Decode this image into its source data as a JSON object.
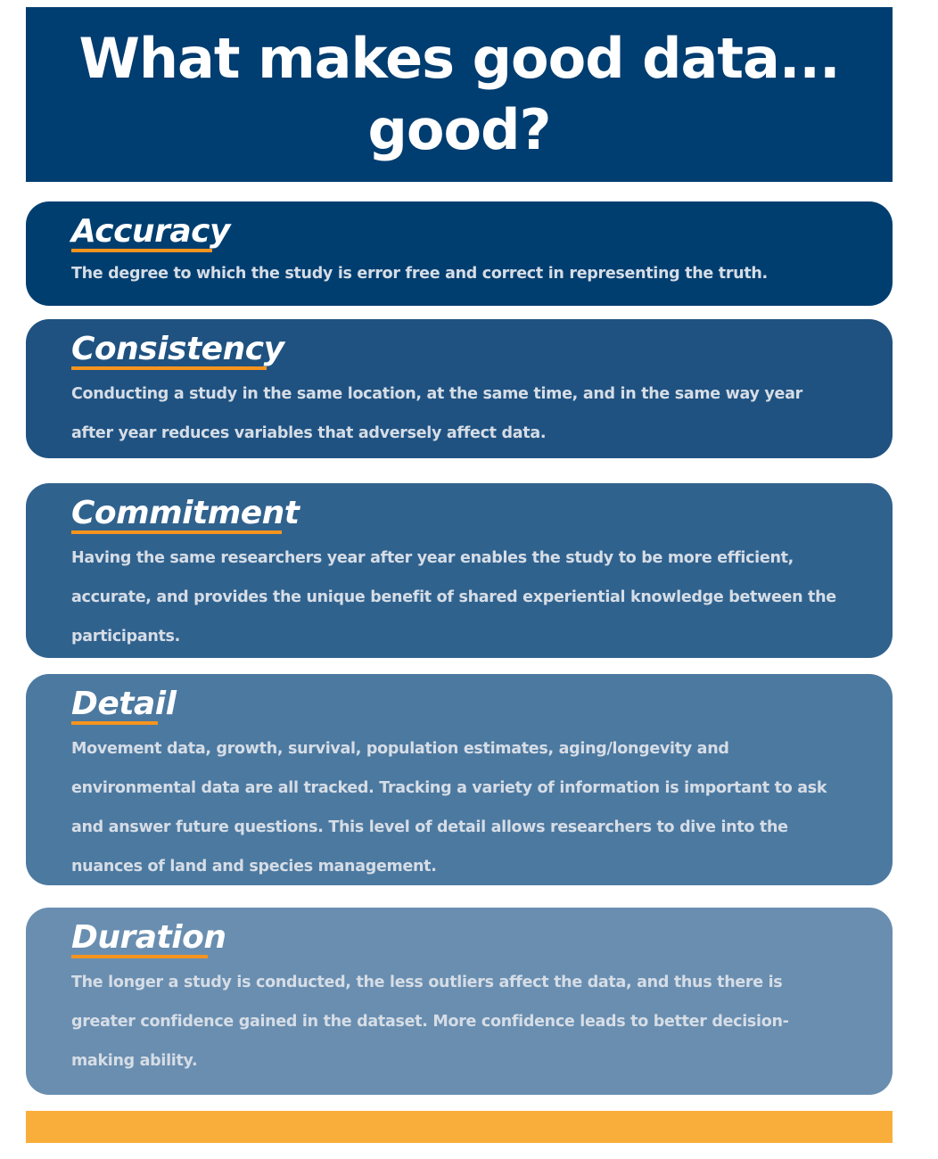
{
  "title": "What makes good data... good?",
  "colors": {
    "header": "#003d70",
    "accent": "#f7941d",
    "footer_bar": "#f9ae3b"
  },
  "sections": [
    {
      "heading": "Accuracy",
      "text": "The degree to which the study is error free and correct in representing the truth."
    },
    {
      "heading": "Consistency",
      "text": "Conducting a study in the same location, at the same time, and in the same way year after year reduces variables that adversely affect data."
    },
    {
      "heading": "Commitment",
      "text": "Having the same researchers year after year enables the study to be more efficient, accurate, and provides the unique benefit of shared experiential knowledge between the participants."
    },
    {
      "heading": "Detail",
      "text": "Movement data, growth, survival, population estimates, aging/longevity and environmental data are all tracked. Tracking a variety of information is important to ask and answer future questions. This level of detail allows researchers to dive into the nuances of land and species management."
    },
    {
      "heading": "Duration",
      "text": "The longer a study is conducted, the less outliers affect the data, and thus there is greater confidence gained in the dataset. More confidence leads to better decision-making ability."
    }
  ]
}
